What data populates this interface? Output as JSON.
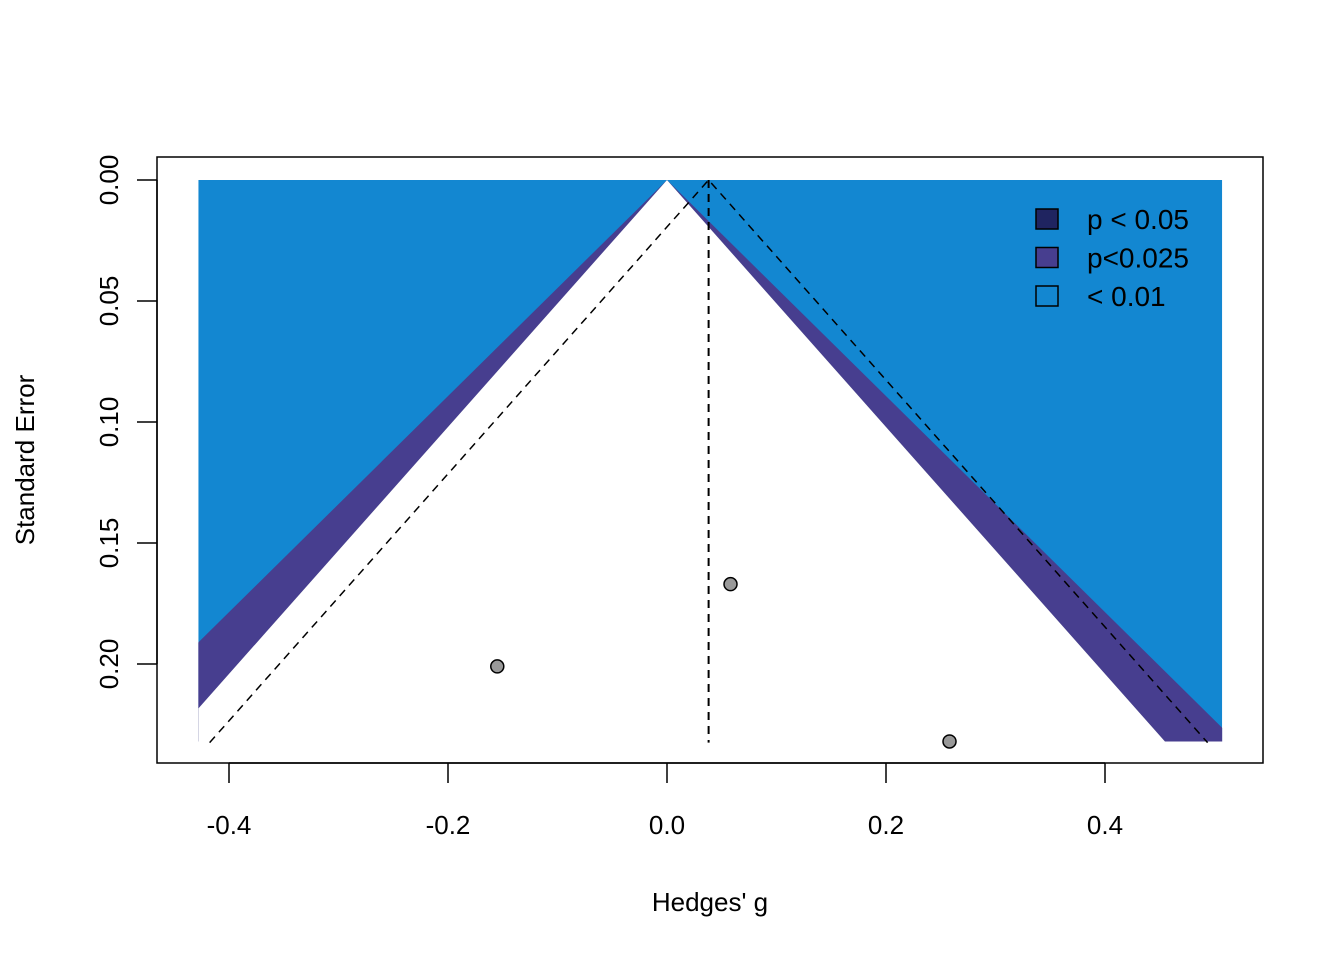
{
  "chart_data": {
    "type": "scatter",
    "subtype": "contour-enhanced funnel plot",
    "xlabel": "Hedges' g",
    "ylabel": "Standard Error",
    "xlim": [
      -0.46,
      0.55
    ],
    "ylim": [
      0.242,
      -0.009
    ],
    "x_ticks": [
      -0.4,
      -0.2,
      0.0,
      0.2,
      0.4
    ],
    "x_tick_labels": [
      "-0.4",
      "-0.2",
      "0.0",
      "0.2",
      "0.4"
    ],
    "y_ticks": [
      0.0,
      0.05,
      0.1,
      0.15,
      0.2
    ],
    "y_tick_labels": [
      "0.00",
      "0.05",
      "0.10",
      "0.15",
      "0.20"
    ],
    "contour_region": {
      "x": [
        -0.428,
        0.507
      ],
      "se_max": 0.232
    },
    "contours": [
      {
        "label": "p < 0.05",
        "z": 1.96,
        "color": "#1F2460"
      },
      {
        "label": "p<0.025",
        "z": 2.24,
        "color": "#473E8F"
      },
      {
        "label": "< 0.01",
        "z": 2.576,
        "color": "#1387D1"
      }
    ],
    "pooled_estimate": 0.038,
    "funnel_z": 1.96,
    "points": [
      {
        "x": -0.155,
        "se": 0.201
      },
      {
        "x": 0.058,
        "se": 0.167
      },
      {
        "x": 0.258,
        "se": 0.232
      }
    ],
    "point_color": "#999999",
    "legend_position": "top-right"
  }
}
